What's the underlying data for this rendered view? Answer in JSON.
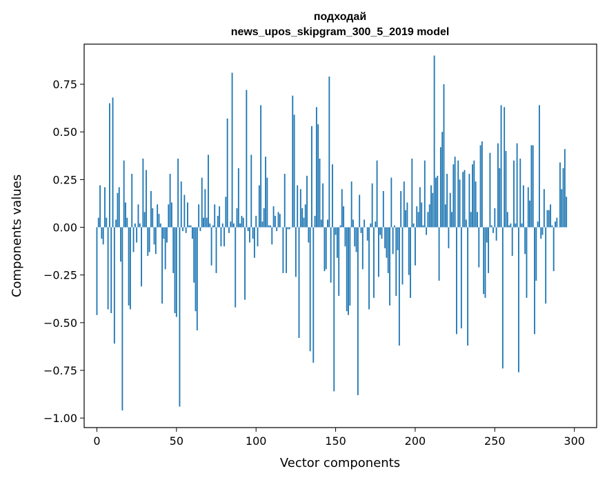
{
  "chart_data": {
    "type": "bar",
    "title_line1": "подходай",
    "title_line2": "news_upos_skipgram_300_5_2019 model",
    "xlabel": "Vector components",
    "ylabel": "Components values",
    "xlim": [
      -8,
      314
    ],
    "ylim": [
      -1.05,
      0.96
    ],
    "xticks": [
      0,
      50,
      100,
      150,
      200,
      250,
      300
    ],
    "yticks": [
      -1.0,
      -0.75,
      -0.5,
      -0.25,
      0.0,
      0.25,
      0.5,
      0.75
    ],
    "ytick_labels": [
      "−1.00",
      "−0.75",
      "−0.50",
      "−0.25",
      "0.00",
      "0.25",
      "0.50",
      "0.75"
    ],
    "bar_color": "#1f77b4",
    "values": [
      -0.46,
      0.05,
      0.22,
      -0.06,
      -0.09,
      0.21,
      0.05,
      -0.43,
      0.65,
      -0.45,
      0.68,
      -0.61,
      0.04,
      0.18,
      0.21,
      -0.18,
      -0.96,
      0.35,
      0.13,
      0.05,
      -0.41,
      -0.43,
      0.28,
      -0.13,
      0.02,
      -0.08,
      0.12,
      0.02,
      -0.31,
      0.36,
      0.08,
      0.3,
      -0.15,
      -0.13,
      0.19,
      0.1,
      -0.09,
      -0.14,
      0.12,
      0.07,
      0.02,
      -0.4,
      -0.06,
      -0.22,
      -0.08,
      0.12,
      0.28,
      0.13,
      -0.24,
      -0.45,
      -0.47,
      0.36,
      -0.94,
      0.24,
      -0.02,
      0.17,
      -0.03,
      0.13,
      0.01,
      0.01,
      -0.06,
      -0.29,
      -0.44,
      -0.54,
      0.12,
      -0.02,
      0.26,
      0.05,
      0.2,
      0.05,
      0.38,
      0.02,
      -0.2,
      0.01,
      0.12,
      -0.24,
      0.06,
      0.11,
      -0.1,
      0.02,
      -0.1,
      0.16,
      0.57,
      -0.03,
      0.03,
      0.81,
      0.02,
      -0.42,
      0.1,
      0.31,
      0.02,
      0.06,
      0.05,
      -0.38,
      0.72,
      -0.02,
      -0.08,
      0.38,
      -0.06,
      -0.16,
      0.06,
      -0.1,
      0.22,
      0.64,
      0.03,
      0.1,
      0.37,
      0.26,
      0.01,
      0.01,
      -0.09,
      0.11,
      0.06,
      -0.02,
      0.08,
      0.07,
      0.0,
      -0.24,
      0.28,
      -0.24,
      -0.01,
      -0.01,
      0.0,
      0.69,
      0.59,
      -0.26,
      0.22,
      -0.58,
      0.2,
      0.1,
      0.05,
      0.12,
      0.27,
      -0.08,
      -0.65,
      0.53,
      -0.71,
      0.06,
      0.63,
      0.54,
      0.36,
      0.04,
      0.23,
      -0.23,
      -0.22,
      0.04,
      0.79,
      -0.29,
      0.33,
      -0.86,
      -0.04,
      -0.16,
      -0.36,
      0.01,
      0.2,
      0.11,
      -0.1,
      -0.44,
      -0.46,
      -0.41,
      0.24,
      0.04,
      -0.1,
      -0.13,
      -0.88,
      0.17,
      -0.03,
      -0.22,
      0.04,
      0.0,
      -0.07,
      -0.43,
      0.02,
      0.23,
      -0.37,
      0.03,
      0.35,
      -0.26,
      -0.04,
      -0.06,
      0.19,
      -0.11,
      -0.16,
      -0.24,
      -0.41,
      0.26,
      -0.14,
      0.01,
      -0.36,
      -0.12,
      -0.62,
      0.19,
      -0.3,
      0.24,
      0.09,
      0.13,
      -0.25,
      -0.37,
      0.36,
      0.02,
      -0.2,
      0.11,
      0.08,
      0.21,
      0.13,
      0.01,
      0.35,
      -0.04,
      0.08,
      0.12,
      0.22,
      0.18,
      0.9,
      0.26,
      0.27,
      -0.28,
      0.42,
      0.5,
      0.75,
      0.12,
      0.28,
      -0.11,
      0.18,
      0.08,
      0.33,
      0.37,
      -0.56,
      0.35,
      0.25,
      -0.53,
      0.29,
      0.3,
      0.04,
      -0.62,
      0.28,
      0.08,
      0.33,
      0.35,
      0.24,
      0.08,
      -0.21,
      0.43,
      0.45,
      -0.35,
      -0.37,
      -0.08,
      -0.24,
      0.39,
      0.01,
      -0.03,
      0.1,
      -0.07,
      0.44,
      0.31,
      0.64,
      -0.74,
      0.63,
      0.4,
      0.08,
      0.01,
      0.02,
      -0.15,
      0.35,
      0.02,
      0.44,
      -0.76,
      0.36,
      0.02,
      0.22,
      -0.14,
      -0.37,
      0.21,
      0.14,
      0.43,
      0.43,
      -0.56,
      -0.28,
      0.03,
      0.64,
      -0.06,
      -0.04,
      0.2,
      -0.4,
      0.09,
      0.09,
      0.12,
      0.01,
      -0.23,
      0.03,
      0.05,
      0.0,
      0.34,
      0.2,
      0.31,
      0.41,
      0.16
    ]
  }
}
